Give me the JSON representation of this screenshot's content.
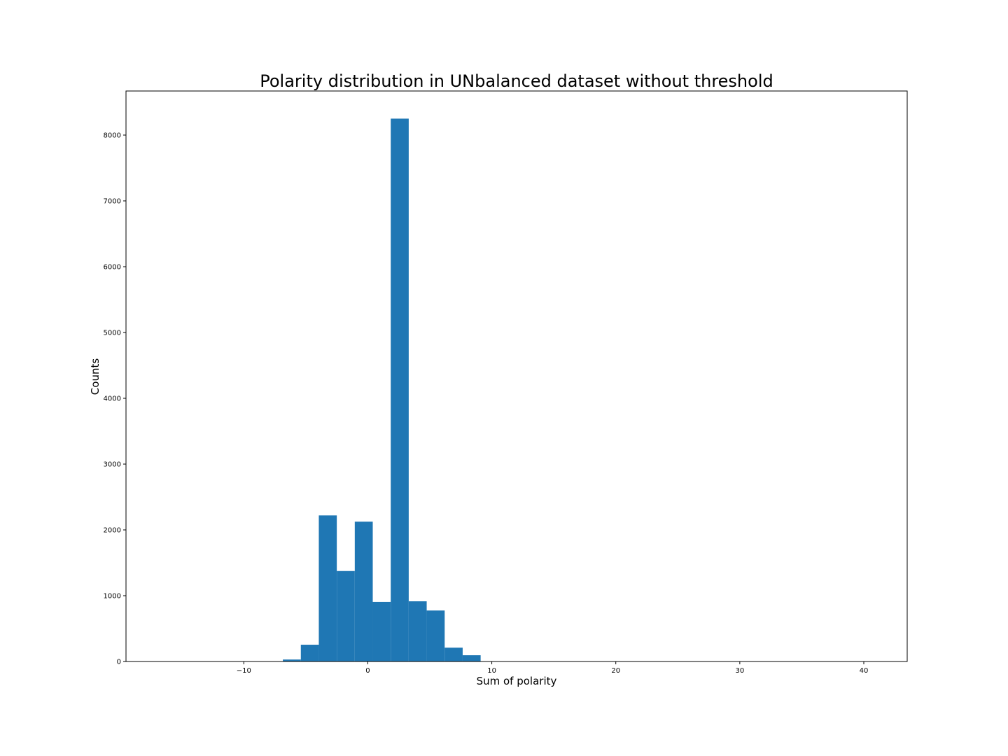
{
  "chart_data": {
    "type": "bar",
    "title": "Polarity distribution in UNbalanced dataset without threshold",
    "xlabel": "Sum of polarity",
    "ylabel": "Counts",
    "xlim": [
      -19.5,
      43.5
    ],
    "ylim": [
      0,
      8670
    ],
    "x_ticks": [
      -10,
      0,
      10,
      20,
      30,
      40
    ],
    "x_tick_labels": [
      "−10",
      "0",
      "10",
      "20",
      "30",
      "40"
    ],
    "y_ticks": [
      0,
      1000,
      2000,
      3000,
      4000,
      5000,
      6000,
      7000,
      8000
    ],
    "y_tick_labels": [
      "0",
      "1000",
      "2000",
      "3000",
      "4000",
      "5000",
      "6000",
      "7000",
      "8000"
    ],
    "bin_width": 1.45,
    "bins": [
      {
        "x0": -8.3,
        "value": 5
      },
      {
        "x0": -6.85,
        "value": 30
      },
      {
        "x0": -5.4,
        "value": 255
      },
      {
        "x0": -3.95,
        "value": 2220
      },
      {
        "x0": -2.5,
        "value": 1375
      },
      {
        "x0": -1.05,
        "value": 2125
      },
      {
        "x0": 0.4,
        "value": 905
      },
      {
        "x0": 1.85,
        "value": 8250
      },
      {
        "x0": 3.3,
        "value": 915
      },
      {
        "x0": 4.75,
        "value": 775
      },
      {
        "x0": 6.2,
        "value": 210
      },
      {
        "x0": 7.65,
        "value": 95
      },
      {
        "x0": 10.55,
        "value": 5
      },
      {
        "x0": 12.0,
        "value": 5
      },
      {
        "x0": 14.9,
        "value": 5
      },
      {
        "x0": 17.8,
        "value": 5
      },
      {
        "x0": 20.7,
        "value": 5
      }
    ],
    "bar_color": "#1f77b4",
    "grid": false,
    "legend": "none"
  }
}
